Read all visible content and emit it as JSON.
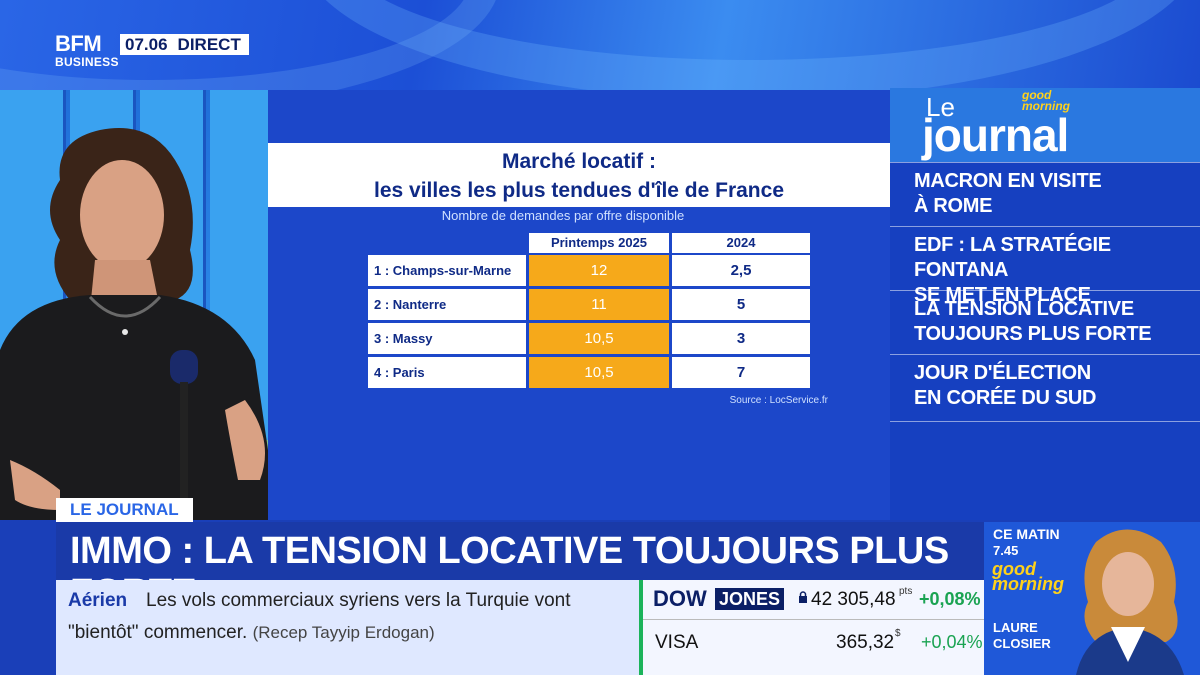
{
  "header": {
    "logo_line1": "BFM",
    "logo_line2": "BUSINESS",
    "clock": "07.06",
    "live": "DIRECT"
  },
  "graphic": {
    "title_line1": "Marché locatif :",
    "title_line2": "les villes les plus tendues d'île de France",
    "subtitle": "Nombre de demandes par offre disponible",
    "col_a": "Printemps 2025",
    "col_b": "2024",
    "rows": [
      {
        "city": "1 : Champs-sur-Marne",
        "a": "12",
        "b": "2,5"
      },
      {
        "city": "2 : Nanterre",
        "a": "11",
        "b": "5"
      },
      {
        "city": "3 : Massy",
        "a": "10,5",
        "b": "3"
      },
      {
        "city": "4 : Paris",
        "a": "10,5",
        "b": "7"
      }
    ],
    "source": "Source : LocService.fr",
    "highlight_color": "#f6a91a"
  },
  "journal": {
    "le": "Le",
    "word": "journal",
    "gm_line1": "good",
    "gm_line2": "morning",
    "items": [
      {
        "l1": "MACRON EN VISITE",
        "l2": "À ROME"
      },
      {
        "l1": "EDF : LA STRATÉGIE FONTANA",
        "l2": "SE MET EN PLACE"
      },
      {
        "l1": "LA TENSION LOCATIVE",
        "l2": "TOUJOURS PLUS FORTE"
      },
      {
        "l1": "JOUR D'ÉLECTION",
        "l2": "EN CORÉE DU SUD"
      }
    ]
  },
  "lower_third": {
    "section": "LE JOURNAL",
    "headline": "IMMO : LA TENSION LOCATIVE TOUJOURS PLUS FORTE"
  },
  "ticker": {
    "category": "Aérien",
    "line1": "Les vols commerciaux syriens vers la Turquie vont",
    "line2": "\"bientôt\" commencer.",
    "quote": "(Recep Tayyip Erdogan)"
  },
  "markets": {
    "index_a": "DOW",
    "index_b": "JONES",
    "dow_value": "42 305,48",
    "dow_unit": "pts",
    "dow_change": "+0,08%",
    "stock": "VISA",
    "stock_value": "365,32",
    "stock_unit": "$",
    "stock_change": "+0,04%",
    "up_color": "#1aa352"
  },
  "promo": {
    "label": "CE MATIN",
    "time": "7.45",
    "show_line1": "good",
    "show_line2": "morning",
    "host_first": "LAURE",
    "host_last": "CLOSIER"
  }
}
